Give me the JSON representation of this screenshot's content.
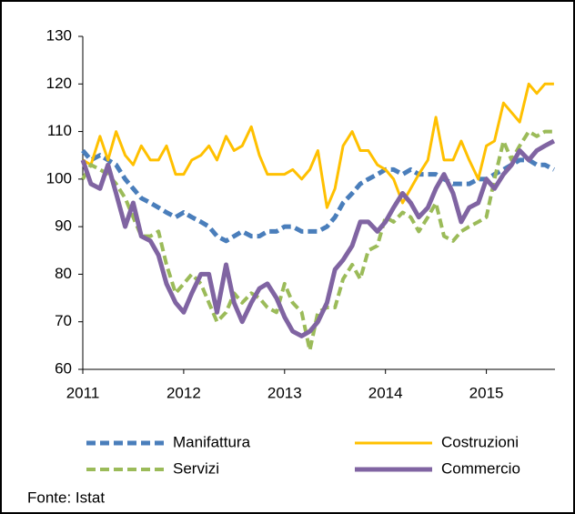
{
  "chart_data": {
    "type": "line",
    "x": [
      2011,
      2011.08,
      2011.17,
      2011.25,
      2011.33,
      2011.42,
      2011.5,
      2011.58,
      2011.67,
      2011.75,
      2011.83,
      2011.92,
      2012,
      2012.08,
      2012.17,
      2012.25,
      2012.33,
      2012.42,
      2012.5,
      2012.58,
      2012.67,
      2012.75,
      2012.83,
      2012.92,
      2013,
      2013.08,
      2013.17,
      2013.25,
      2013.33,
      2013.42,
      2013.5,
      2013.58,
      2013.67,
      2013.75,
      2013.83,
      2013.92,
      2014,
      2014.08,
      2014.17,
      2014.25,
      2014.33,
      2014.42,
      2014.5,
      2014.58,
      2014.67,
      2014.75,
      2014.83,
      2014.92,
      2015,
      2015.08,
      2015.17,
      2015.25,
      2015.33,
      2015.42,
      2015.5,
      2015.58,
      2015.67
    ],
    "series": [
      {
        "name": "Manifattura",
        "color": "#4a7ebb",
        "dash": true,
        "width": 5,
        "values": [
          106,
          104,
          105,
          104,
          103,
          100,
          98,
          96,
          95,
          94,
          93,
          92,
          93,
          92,
          91,
          90,
          88,
          87,
          88,
          89,
          88,
          88,
          89,
          89,
          90,
          90,
          89,
          89,
          89,
          90,
          92,
          95,
          97,
          99,
          100,
          101,
          102,
          102,
          101,
          102,
          101,
          101,
          101,
          100,
          99,
          99,
          99,
          100,
          100,
          101,
          102,
          103,
          104,
          104,
          103,
          103,
          102
        ]
      },
      {
        "name": "Costruzioni",
        "color": "#ffc000",
        "dash": false,
        "width": 3,
        "values": [
          104,
          103,
          109,
          104,
          110,
          105,
          103,
          107,
          104,
          104,
          107,
          101,
          101,
          104,
          105,
          107,
          104,
          109,
          106,
          107,
          111,
          105,
          101,
          101,
          101,
          102,
          100,
          102,
          106,
          94,
          98,
          107,
          110,
          106,
          106,
          103,
          102,
          100,
          95,
          98,
          101,
          104,
          113,
          104,
          104,
          108,
          104,
          100,
          107,
          108,
          116,
          114,
          112,
          120,
          118,
          120,
          120
        ]
      },
      {
        "name": "Servizi",
        "color": "#9bbb59",
        "dash": true,
        "width": 4,
        "values": [
          100,
          103,
          102,
          101,
          99,
          96,
          92,
          88,
          88,
          89,
          82,
          76,
          78,
          80,
          78,
          74,
          70,
          72,
          76,
          74,
          76,
          75,
          73,
          72,
          78,
          74,
          72,
          64,
          72,
          73,
          73,
          79,
          82,
          79,
          85,
          86,
          92,
          91,
          93,
          92,
          89,
          92,
          95,
          88,
          87,
          89,
          90,
          91,
          92,
          100,
          108,
          104,
          107,
          110,
          109,
          110,
          110
        ]
      },
      {
        "name": "Commercio",
        "color": "#8064a2",
        "dash": false,
        "width": 5,
        "values": [
          104,
          99,
          98,
          103,
          97,
          90,
          95,
          88,
          87,
          84,
          78,
          74,
          72,
          76,
          80,
          80,
          72,
          82,
          74,
          70,
          74,
          77,
          78,
          75,
          71,
          68,
          67,
          68,
          70,
          74,
          81,
          83,
          86,
          91,
          91,
          89,
          91,
          94,
          97,
          95,
          92,
          94,
          98,
          101,
          97,
          91,
          94,
          95,
          100,
          98,
          101,
          103,
          106,
          104,
          106,
          107,
          108
        ]
      }
    ],
    "xlim": [
      2011,
      2015.68
    ],
    "xticks": [
      2011,
      2012,
      2013,
      2014,
      2015
    ],
    "ylim": [
      60,
      130
    ],
    "yticks": [
      60,
      70,
      80,
      90,
      100,
      110,
      120,
      130
    ],
    "grid": false,
    "legend": "bottom",
    "note": "Fonte: Istat"
  }
}
